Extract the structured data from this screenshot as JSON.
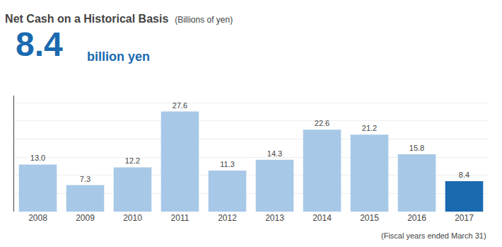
{
  "chart_data": {
    "type": "bar",
    "title": "Net Cash on a Historical Basis",
    "subtitle": "(Billions of yen)",
    "categories": [
      "2008",
      "2009",
      "2010",
      "2011",
      "2012",
      "2013",
      "2014",
      "2015",
      "2016",
      "2017"
    ],
    "values": [
      13.0,
      7.3,
      12.2,
      27.6,
      11.3,
      14.3,
      22.6,
      21.2,
      15.8,
      8.4
    ],
    "value_labels": [
      "13.0",
      "7.3",
      "12.2",
      "27.6",
      "11.3",
      "14.3",
      "22.6",
      "21.2",
      "15.8",
      "8.4"
    ],
    "colors": [
      "#a8c8e8",
      "#a8c8e8",
      "#a8c8e8",
      "#a8c8e8",
      "#a8c8e8",
      "#a8c8e8",
      "#a8c8e8",
      "#a8c8e8",
      "#a8c8e8",
      "#1a6ab0"
    ],
    "ylim": [
      0,
      32
    ],
    "yticks": [
      0,
      5,
      10,
      15,
      20,
      25,
      30
    ],
    "grid": true,
    "data_labels": true,
    "tick_labels": "x",
    "annotations": [
      "8.4",
      "billion yen",
      "(Fiscal years ended March 31)"
    ]
  }
}
